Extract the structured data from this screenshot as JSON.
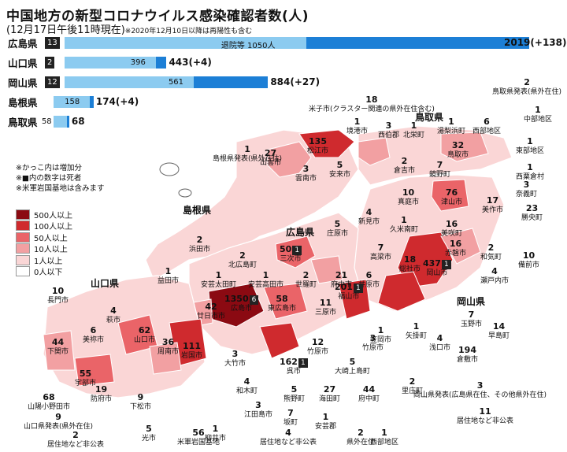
{
  "title": "中国地方の新型コロナウイルス感染確認者数(人)",
  "subtitle": "(12月17日午後11時現在)",
  "subtitle_note": "※2020年12月10日以降は再陽性も含む",
  "bars": [
    {
      "pref": "広島県",
      "deaths": "13",
      "recovered": 1050,
      "recovered_label": "退院等 1050人",
      "total": 2019,
      "total_label": "2019(+138)"
    },
    {
      "pref": "山口県",
      "deaths": "2",
      "recovered": 396,
      "recovered_label": "396",
      "total": 443,
      "total_label": "443(+4)"
    },
    {
      "pref": "岡山県",
      "deaths": "12",
      "recovered": 561,
      "recovered_label": "561",
      "total": 884,
      "total_label": "884(+27)"
    },
    {
      "pref": "島根県",
      "deaths": "",
      "recovered": 158,
      "recovered_label": "158",
      "total": 174,
      "total_label": "174(+4)"
    },
    {
      "pref": "鳥取県",
      "deaths": "",
      "recovered": 58,
      "recovered_label": "58",
      "total": 68,
      "total_label": "68"
    }
  ],
  "notes": [
    "※かっこ内は増加分",
    "※■内の数字は死者",
    "※米軍岩国基地は含みます"
  ],
  "legend": [
    {
      "label": "500人以上",
      "color": "#8b0a12"
    },
    {
      "label": "100人以上",
      "color": "#cf2a2e"
    },
    {
      "label": "50人以上",
      "color": "#ea6468"
    },
    {
      "label": "10人以上",
      "color": "#f2a0a2"
    },
    {
      "label": "1人以上",
      "color": "#fad6d6"
    },
    {
      "label": "0人以下",
      "color": "#ffffff"
    }
  ],
  "prefectures": {
    "tottori": "鳥取県",
    "shimane": "島根県",
    "hiroshima": "広島県",
    "yamaguchi": "山口県",
    "okayama": "岡山県"
  },
  "labels": [
    {
      "n": "18",
      "t": "米子市(クラスター関連の県外在住含む)"
    },
    {
      "n": "1",
      "t": "境港市"
    },
    {
      "n": "3",
      "t": "西伯郡"
    },
    {
      "n": "1",
      "t": "北栄町"
    },
    {
      "n": "1",
      "t": "湯梨浜町"
    },
    {
      "n": "2",
      "t": "鳥取県発表(県外在住)"
    },
    {
      "n": "1",
      "t": "中部地区"
    },
    {
      "n": "6",
      "t": "西部地区"
    },
    {
      "n": "135",
      "t": "松江市"
    },
    {
      "n": "32",
      "t": "鳥取市"
    },
    {
      "n": "1",
      "t": "東部地区"
    },
    {
      "n": "1",
      "t": "島根県発表(県外在住)"
    },
    {
      "n": "27",
      "t": "出雲市"
    },
    {
      "n": "3",
      "t": "雲南市"
    },
    {
      "n": "5",
      "t": "安来市"
    },
    {
      "n": "2",
      "t": "倉吉市"
    },
    {
      "n": "7",
      "t": "鏡野町"
    },
    {
      "n": "76",
      "t": "津山市"
    },
    {
      "n": "1",
      "t": "西粟倉村"
    },
    {
      "n": "3",
      "t": "奈義町"
    },
    {
      "n": "10",
      "t": "真庭市"
    },
    {
      "n": "17",
      "t": "美作市"
    },
    {
      "n": "23",
      "t": "勝央町"
    },
    {
      "n": "4",
      "t": "新見市"
    },
    {
      "n": "1",
      "t": "久米南町"
    },
    {
      "n": "16",
      "t": "美咲町"
    },
    {
      "n": "5",
      "t": "庄原市"
    },
    {
      "n": "2",
      "t": "浜田市"
    },
    {
      "n": "16",
      "t": "赤磐市"
    },
    {
      "n": "2",
      "t": "和気町"
    },
    {
      "n": "10",
      "t": "備前市"
    },
    {
      "n": "7",
      "t": "高梁市"
    },
    {
      "n": "2",
      "t": "北広島町"
    },
    {
      "n": "50",
      "t": "三次市",
      "d": "1"
    },
    {
      "n": "18",
      "t": "総社市"
    },
    {
      "n": "437",
      "t": "岡山市",
      "d": "1"
    },
    {
      "n": "4",
      "t": "瀬戸内市"
    },
    {
      "n": "1",
      "t": "益田市"
    },
    {
      "n": "1",
      "t": "安芸太田町"
    },
    {
      "n": "1",
      "t": "安芸高田市"
    },
    {
      "n": "2",
      "t": "世羅町"
    },
    {
      "n": "21",
      "t": "府中市"
    },
    {
      "n": "6",
      "t": "井原市"
    },
    {
      "n": "10",
      "t": "長門市"
    },
    {
      "n": "1350",
      "t": "広島市",
      "d": "6"
    },
    {
      "n": "58",
      "t": "東広島市"
    },
    {
      "n": "11",
      "t": "三原市"
    },
    {
      "n": "201",
      "t": "福山市",
      "d": "1"
    },
    {
      "n": "7",
      "t": "玉野市"
    },
    {
      "n": "14",
      "t": "早島町"
    },
    {
      "n": "4",
      "t": "萩市"
    },
    {
      "n": "42",
      "t": "廿日市市"
    },
    {
      "n": "1",
      "t": "矢掛町"
    },
    {
      "n": "6",
      "t": "美祢市"
    },
    {
      "n": "62",
      "t": "山口市"
    },
    {
      "n": "36",
      "t": "周南市"
    },
    {
      "n": "111",
      "t": "岩国市"
    },
    {
      "n": "1",
      "t": "笠岡市"
    },
    {
      "n": "44",
      "t": "下関市"
    },
    {
      "n": "4",
      "t": "浅口市"
    },
    {
      "n": "12",
      "t": "竹原市"
    },
    {
      "n": "3",
      "t": "竹原市"
    },
    {
      "n": "194",
      "t": "倉敷市"
    },
    {
      "n": "3",
      "t": "大竹市"
    },
    {
      "n": "162",
      "t": "呉市",
      "d": "1"
    },
    {
      "n": "5",
      "t": "大崎上島町"
    },
    {
      "n": "55",
      "t": "宇部市"
    },
    {
      "n": "2",
      "t": "里庄町"
    },
    {
      "n": "19",
      "t": "防府市"
    },
    {
      "n": "9",
      "t": "下松市"
    },
    {
      "n": "4",
      "t": "和木町"
    },
    {
      "n": "5",
      "t": "熊野町"
    },
    {
      "n": "27",
      "t": "海田町"
    },
    {
      "n": "44",
      "t": "府中町"
    },
    {
      "n": "68",
      "t": "山陽小野田市"
    },
    {
      "n": "3",
      "t": "岡山県発表(広島県在住、その他県外在住)"
    },
    {
      "n": "11",
      "t": "居住地など非公表",
      "box": true
    },
    {
      "n": "9",
      "t": "山口県発表(県外在住)"
    },
    {
      "n": "2",
      "t": "居住地など非公表",
      "box": true
    },
    {
      "n": "3",
      "t": "江田島市"
    },
    {
      "n": "7",
      "t": "坂町"
    },
    {
      "n": "1",
      "t": "安芸郡"
    },
    {
      "n": "5",
      "t": "光市"
    },
    {
      "n": "56",
      "t": "米軍岩国基地"
    },
    {
      "n": "1",
      "t": "柳井市"
    },
    {
      "n": "4",
      "t": "居住地など非公表",
      "box": true
    },
    {
      "n": "2",
      "t": "県外在住"
    },
    {
      "n": "1",
      "t": "西部地区"
    }
  ]
}
